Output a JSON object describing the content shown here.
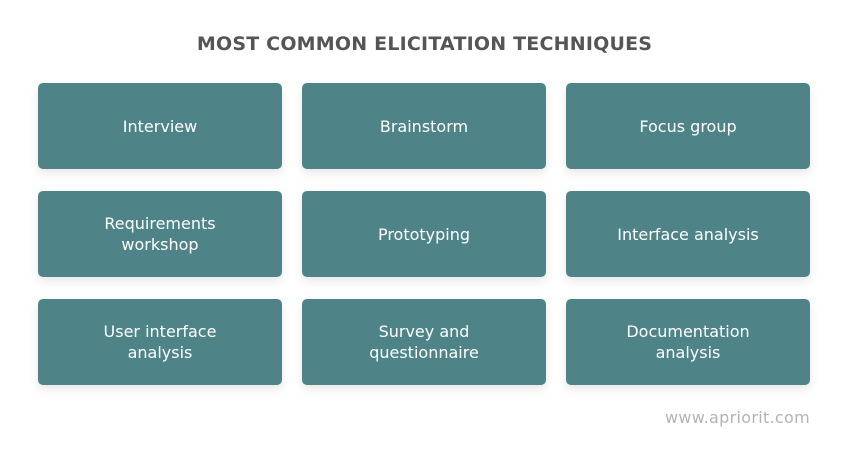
{
  "title": "MOST COMMON ELICITATION TECHNIQUES",
  "techniques": [
    "Interview",
    "Brainstorm",
    "Focus group",
    "Requirements\nworkshop",
    "Prototyping",
    "Interface analysis",
    "User interface\nanalysis",
    "Survey and\nquestionnaire",
    "Documentation\nanalysis"
  ],
  "footer": "www.apriorit.com",
  "colors": {
    "card": "#4e8487",
    "title": "#555555",
    "footer": "#b3b3b3"
  }
}
